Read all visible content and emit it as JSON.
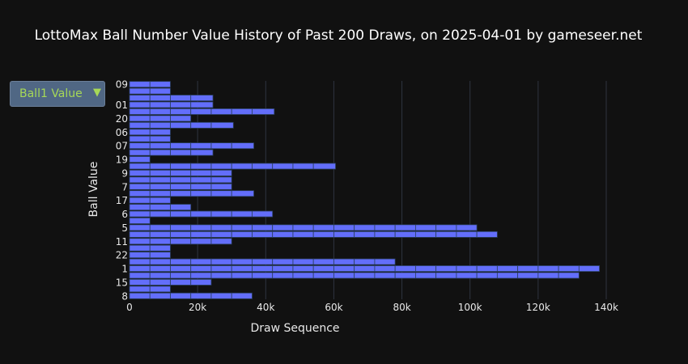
{
  "title": "LottoMax Ball Number Value History of Past 200 Draws, on 2025-04-01 by gameseer.net",
  "dropdown": {
    "selected": "Ball1 Value",
    "arrow_icon": "triangle-down-icon"
  },
  "colors": {
    "background": "#111111",
    "bar_fill": "#636efa",
    "bar_outline": "#2a3f5f",
    "grid": "#2f3440",
    "dropdown_text": "#a6d857",
    "dropdown_bg": "#506784"
  },
  "chart_data": {
    "type": "bar",
    "orientation": "horizontal",
    "stacked": true,
    "xlabel": "Draw Sequence",
    "ylabel": "Ball Value",
    "xlim": [
      0,
      140000
    ],
    "x_ticks": [
      {
        "value": 0,
        "label": "0"
      },
      {
        "value": 20000,
        "label": "20k"
      },
      {
        "value": 40000,
        "label": "40k"
      },
      {
        "value": 60000,
        "label": "60k"
      },
      {
        "value": 80000,
        "label": "80k"
      },
      {
        "value": 100000,
        "label": "100k"
      },
      {
        "value": 120000,
        "label": "120k"
      },
      {
        "value": 140000,
        "label": "140k"
      }
    ],
    "rows": [
      {
        "label": "09",
        "segments": [
          6000,
          6000
        ]
      },
      {
        "label": "",
        "segments": [
          6000,
          6000
        ]
      },
      {
        "label": "",
        "segments": [
          6000,
          6000,
          6000,
          6500
        ]
      },
      {
        "label": "01",
        "segments": [
          6000,
          6000,
          6000,
          6500
        ]
      },
      {
        "label": "",
        "segments": [
          6000,
          6000,
          6000,
          6000,
          6000,
          6000,
          6500
        ]
      },
      {
        "label": "20",
        "segments": [
          6000,
          6000,
          6000
        ]
      },
      {
        "label": "",
        "segments": [
          6000,
          6000,
          6000,
          6000,
          6500
        ]
      },
      {
        "label": "06",
        "segments": [
          6000,
          6000
        ]
      },
      {
        "label": "",
        "segments": [
          6000,
          6000
        ]
      },
      {
        "label": "07",
        "segments": [
          6000,
          6000,
          6000,
          6000,
          6000,
          6500
        ]
      },
      {
        "label": "",
        "segments": [
          6000,
          6000,
          6000,
          6500
        ]
      },
      {
        "label": "19",
        "segments": [
          6000
        ]
      },
      {
        "label": "",
        "segments": [
          6000,
          6000,
          6000,
          6000,
          6000,
          6000,
          6000,
          6000,
          6000,
          6500
        ]
      },
      {
        "label": "9",
        "segments": [
          6000,
          6000,
          6000,
          6000,
          6000
        ]
      },
      {
        "label": "",
        "segments": [
          6000,
          6000,
          6000,
          6000,
          6000
        ]
      },
      {
        "label": "7",
        "segments": [
          6000,
          6000,
          6000,
          6000,
          6000
        ]
      },
      {
        "label": "",
        "segments": [
          6000,
          6000,
          6000,
          6000,
          6000,
          6500
        ]
      },
      {
        "label": "17",
        "segments": [
          6000,
          6000
        ]
      },
      {
        "label": "",
        "segments": [
          6000,
          6000,
          6000
        ]
      },
      {
        "label": "6",
        "segments": [
          6000,
          6000,
          6000,
          6000,
          6000,
          6000,
          6000
        ]
      },
      {
        "label": "",
        "segments": [
          6000
        ]
      },
      {
        "label": "5",
        "segments": [
          6000,
          6000,
          6000,
          6000,
          6000,
          6000,
          6000,
          6000,
          6000,
          6000,
          6000,
          6000,
          6000,
          6000,
          6000,
          6000,
          6000
        ]
      },
      {
        "label": "",
        "segments": [
          6000,
          6000,
          6000,
          6000,
          6000,
          6000,
          6000,
          6000,
          6000,
          6000,
          6000,
          6000,
          6000,
          6000,
          6000,
          6000,
          6000,
          6000
        ]
      },
      {
        "label": "11",
        "segments": [
          6000,
          6000,
          6000,
          6000,
          6000
        ]
      },
      {
        "label": "",
        "segments": [
          6000,
          6000
        ]
      },
      {
        "label": "22",
        "segments": [
          6000,
          6000
        ]
      },
      {
        "label": "",
        "segments": [
          6000,
          6000,
          6000,
          6000,
          6000,
          6000,
          6000,
          6000,
          6000,
          6000,
          6000,
          6000,
          6000
        ]
      },
      {
        "label": "1",
        "segments": [
          6000,
          6000,
          6000,
          6000,
          6000,
          6000,
          6000,
          6000,
          6000,
          6000,
          6000,
          6000,
          6000,
          6000,
          6000,
          6000,
          6000,
          6000,
          6000,
          6000,
          6000,
          6000,
          6000
        ]
      },
      {
        "label": "",
        "segments": [
          6000,
          6000,
          6000,
          6000,
          6000,
          6000,
          6000,
          6000,
          6000,
          6000,
          6000,
          6000,
          6000,
          6000,
          6000,
          6000,
          6000,
          6000,
          6000,
          6000,
          6000,
          6000
        ]
      },
      {
        "label": "15",
        "segments": [
          6000,
          6000,
          6000,
          6000
        ]
      },
      {
        "label": "",
        "segments": [
          6000,
          6000
        ]
      },
      {
        "label": "8",
        "segments": [
          6000,
          6000,
          6000,
          6000,
          6000,
          6000
        ]
      }
    ]
  }
}
